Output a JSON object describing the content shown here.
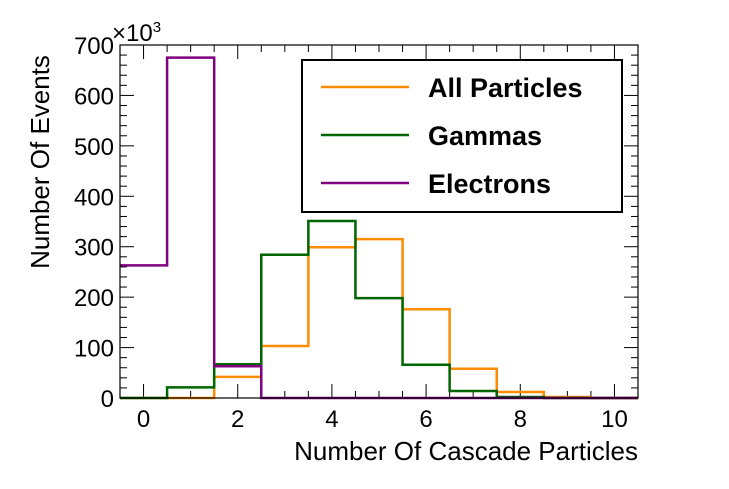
{
  "chart_data": {
    "type": "histogram",
    "x_label": "Number Of Cascade Particles",
    "y_label": "Number Of Events",
    "y_multiplier": {
      "base": "×10",
      "exponent": "3"
    },
    "bin_edges": [
      -0.5,
      0.5,
      1.5,
      2.5,
      3.5,
      4.5,
      5.5,
      6.5,
      7.5,
      8.5,
      9.5,
      10.5
    ],
    "xlim": [
      -0.5,
      10.5
    ],
    "ylim": [
      0,
      700
    ],
    "x_ticks": [
      0,
      2,
      4,
      6,
      8,
      10
    ],
    "y_ticks": [
      0,
      100,
      200,
      300,
      400,
      500,
      600,
      700
    ],
    "x_minor_step": 0.5,
    "y_minor_step": 20,
    "units": "thousands of events",
    "legend_position": "top-right",
    "series": [
      {
        "name": "All Particles",
        "color": "#ff8c00",
        "values": [
          0,
          0,
          42,
          103,
          299,
          315,
          176,
          58,
          12,
          2,
          0
        ]
      },
      {
        "name": "Gammas",
        "color": "#006400",
        "values": [
          0,
          21,
          67,
          284,
          351,
          198,
          66,
          14,
          2,
          0,
          0
        ]
      },
      {
        "name": "Electrons",
        "color": "#800080",
        "values": [
          263,
          675,
          63,
          0,
          0,
          0,
          0,
          0,
          0,
          0,
          0
        ]
      }
    ]
  }
}
